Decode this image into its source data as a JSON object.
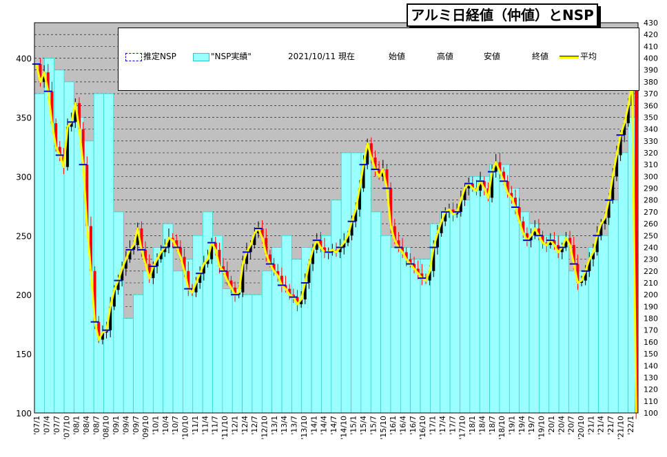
{
  "title": "アルミ日経値（仲値）とNSP",
  "legend": {
    "estimated_nsp": "推定NSP",
    "actual_nsp": "\"NSP実績\"",
    "date": "2021/10/11  現在",
    "open": "始値",
    "high": "高値",
    "low": "安値",
    "close": "終値",
    "average": "平均"
  },
  "colors": {
    "plot_background": "#c0c0c0",
    "nsp_bar_fill": "#99ffff",
    "nsp_bar_stroke": "#33cccc",
    "up_candle": "#000000",
    "down_candle": "#ff0000",
    "average_line": "#ffff00",
    "estimated_nsp": "#0000cc"
  },
  "chart_data": {
    "type": "bar",
    "description_of_series": [
      "NSP実績 (bars)",
      "平均 (line)",
      "推定NSP (markers)"
    ],
    "x_tick_labels": [
      "'07/1",
      "'07/4",
      "'07/7",
      "'07/10",
      "'08/1",
      "'08/4",
      "'08/7",
      "'08/10",
      "'09/1",
      "'09/4",
      "'09/7",
      "'09/10",
      "'10/1",
      "'10/4",
      "'10/7",
      "'10/10",
      "'11/1",
      "'11/4",
      "'11/7",
      "'11/10",
      "'12/1",
      "'12/4",
      "'12/7",
      "'12/10",
      "'13/1",
      "'13/4",
      "'13/7",
      "'13/10",
      "'14/1",
      "'14/4",
      "'14/7",
      "'14/10",
      "'15/1",
      "'15/4",
      "'15/7",
      "'15/10",
      "'16/1",
      "'16/4",
      "'16/7",
      "'16/10",
      "'17/1",
      "'17/4",
      "'17/7",
      "'17/10",
      "'18/1",
      "'18/4",
      "'18/7",
      "'18/10",
      "'19/1",
      "'19/4",
      "'19/7",
      "'19/10",
      "'20/1",
      "'20/4",
      "'20/7",
      "'20/10",
      "'21/1",
      "'21/4",
      "'21/7",
      "'21/10",
      "'22/1"
    ],
    "y_left": {
      "min": 100,
      "max": 430,
      "ticks": [
        100,
        150,
        200,
        250,
        300,
        350,
        400
      ]
    },
    "y_right": {
      "min": 100,
      "max": 430,
      "step": 10
    },
    "nsp_actual": [
      370,
      400,
      390,
      380,
      350,
      330,
      370,
      370,
      270,
      180,
      200,
      220,
      240,
      260,
      220,
      230,
      250,
      270,
      250,
      205,
      205,
      200,
      200,
      220,
      240,
      250,
      230,
      240,
      240,
      250,
      280,
      320,
      320,
      320,
      270,
      250,
      240,
      240,
      230,
      230,
      260,
      270,
      270,
      280,
      300,
      300,
      310,
      310,
      290,
      270,
      260,
      250,
      250,
      250,
      220,
      220,
      240,
      250,
      280,
      320,
      350
    ],
    "average": [
      395,
      380,
      388,
      372,
      345,
      325,
      318,
      308,
      342,
      346,
      362,
      340,
      310,
      258,
      220,
      177,
      162,
      168,
      170,
      190,
      204,
      212,
      222,
      230,
      238,
      242,
      256,
      238,
      226,
      214,
      224,
      230,
      236,
      240,
      248,
      246,
      240,
      232,
      220,
      205,
      202,
      210,
      218,
      226,
      230,
      244,
      238,
      224,
      220,
      212,
      206,
      200,
      202,
      226,
      236,
      242,
      252,
      256,
      248,
      234,
      226,
      220,
      216,
      208,
      205,
      200,
      198,
      192,
      196,
      210,
      226,
      238,
      246,
      240,
      236,
      236,
      238,
      236,
      240,
      244,
      250,
      262,
      272,
      290,
      310,
      328,
      316,
      306,
      300,
      306,
      290,
      258,
      246,
      240,
      236,
      230,
      226,
      222,
      218,
      214,
      212,
      220,
      240,
      252,
      262,
      270,
      272,
      268,
      270,
      280,
      290,
      294,
      290,
      288,
      296,
      290,
      282,
      304,
      312,
      304,
      296,
      286,
      282,
      274,
      262,
      252,
      246,
      250,
      256,
      250,
      244,
      242,
      246,
      242,
      236,
      240,
      248,
      242,
      226,
      210,
      212,
      220,
      230,
      236,
      250,
      260,
      265,
      280,
      300,
      318,
      335,
      345,
      360,
      380,
      100
    ],
    "ohlc_summary": "candles drawn around the average series"
  }
}
